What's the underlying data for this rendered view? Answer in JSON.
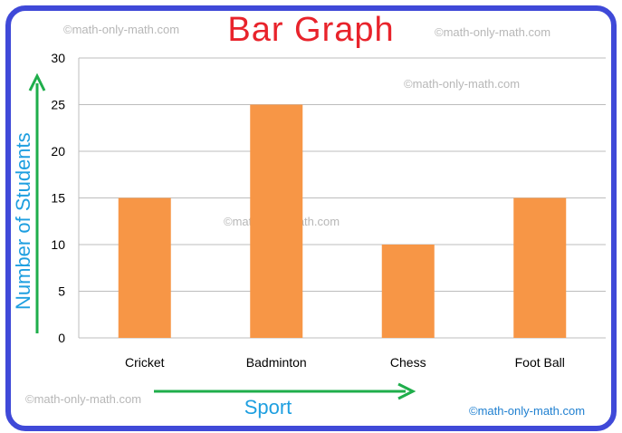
{
  "chart_data": {
    "type": "bar",
    "title": "Bar Graph",
    "categories": [
      "Cricket",
      "Badminton",
      "Chess",
      "Foot Ball"
    ],
    "values": [
      15,
      25,
      10,
      15
    ],
    "xlabel": "Sport",
    "ylabel": "Number of Students",
    "ylim": [
      0,
      30
    ],
    "yticks": [
      0,
      5,
      10,
      15,
      20,
      25,
      30
    ],
    "grid": true,
    "legend": "none"
  },
  "colors": {
    "bar": "#f79646",
    "frame": "#3f49d8",
    "title": "#e8232b",
    "axis_title": "#1e9fe0",
    "arrow": "#1fae4b",
    "grid": "#bdbdbd"
  },
  "watermarks": [
    "©math-only-math.com",
    "©math-only-math.com",
    "©math-only-math.com",
    "©math-only-math.com",
    "©math-only-math.com"
  ],
  "credit": "©math-only-math.com"
}
